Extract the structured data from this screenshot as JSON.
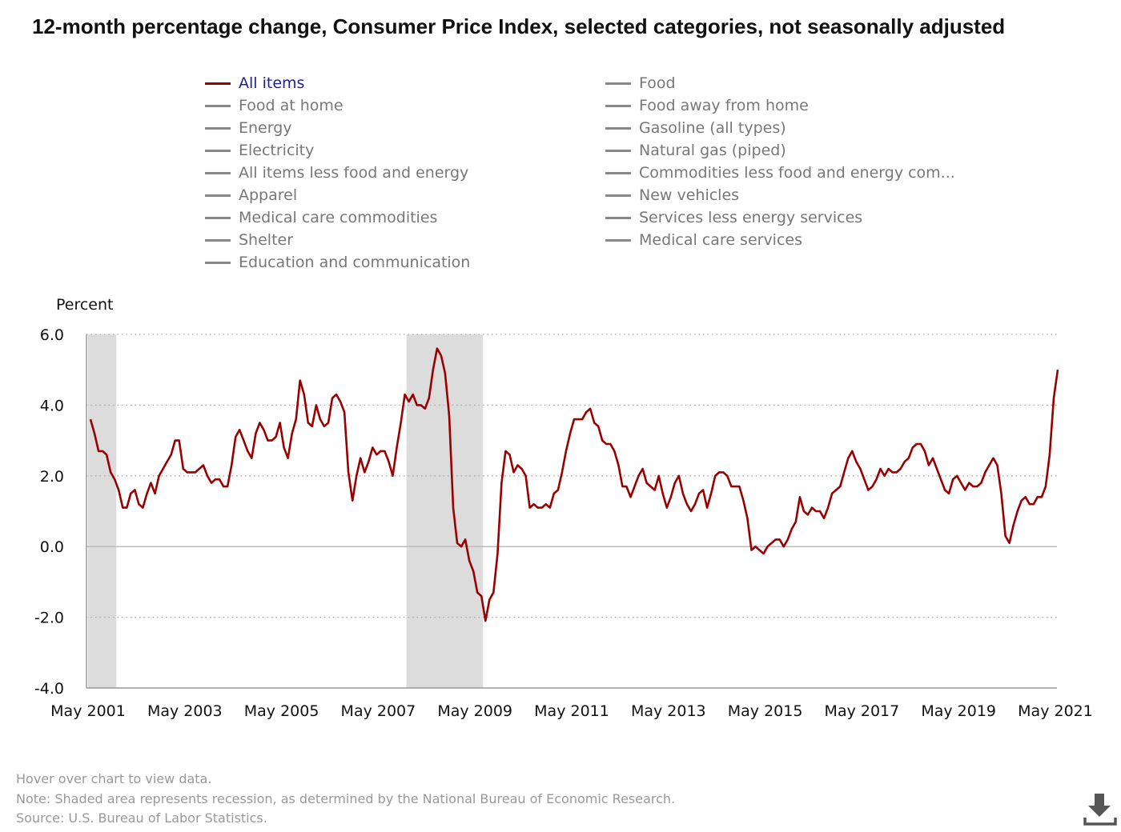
{
  "title": "12-month percentage change, Consumer Price Index, selected categories, not seasonally adjusted",
  "legend": {
    "col1": [
      "All items",
      "Food at home",
      "Energy",
      "Electricity",
      "All items less food and energy",
      "Apparel",
      "Medical care commodities",
      "Shelter",
      "Education and communication"
    ],
    "col2": [
      "Food",
      "Food away from home",
      "Gasoline (all types)",
      "Natural gas (piped)",
      "Commodities less food and energy com...",
      "New vehicles",
      "Services less energy services",
      "Medical care services"
    ],
    "active": "All items"
  },
  "colors": {
    "series": "#990000",
    "recession": "#dcdcdc",
    "active_legend_text": "#1f1f8f",
    "inactive_legend": "#888888"
  },
  "footer": {
    "hover": "Hover over chart to view data.",
    "note": "Note: Shaded area represents recession, as determined by the National Bureau of Economic Research.",
    "source": "Source: U.S. Bureau of Labor Statistics."
  },
  "download_icon": "download-icon",
  "chart_data": {
    "type": "line",
    "title": "12-month percentage change, Consumer Price Index, selected categories, not seasonally adjusted",
    "ylabel": "Percent",
    "ylim": [
      -4.0,
      6.0
    ],
    "yticks": [
      "6.0",
      "4.0",
      "2.0",
      "0.0",
      "-2.0",
      "-4.0"
    ],
    "ytick_values": [
      6,
      4,
      2,
      0,
      -2,
      -4
    ],
    "xlim": [
      "May 2001",
      "May 2021"
    ],
    "xticks": [
      "May 2001",
      "May 2003",
      "May 2005",
      "May 2007",
      "May 2009",
      "May 2011",
      "May 2013",
      "May 2015",
      "May 2017",
      "May 2019",
      "May 2021"
    ],
    "grid": "horizontal dotted",
    "start_month": "May 2001",
    "recessions": [
      [
        "May 2001",
        "Nov 2001"
      ],
      [
        "Dec 2007",
        "Jun 2009"
      ]
    ],
    "series": [
      {
        "name": "All items",
        "frequency": "monthly",
        "values": [
          3.6,
          3.2,
          2.7,
          2.7,
          2.6,
          2.1,
          1.9,
          1.6,
          1.1,
          1.1,
          1.5,
          1.6,
          1.2,
          1.1,
          1.5,
          1.8,
          1.5,
          2.0,
          2.2,
          2.4,
          2.6,
          3.0,
          3.0,
          2.2,
          2.1,
          2.1,
          2.1,
          2.2,
          2.3,
          2.0,
          1.8,
          1.9,
          1.9,
          1.7,
          1.7,
          2.3,
          3.1,
          3.3,
          3.0,
          2.7,
          2.5,
          3.2,
          3.5,
          3.3,
          3.0,
          3.0,
          3.1,
          3.5,
          2.8,
          2.5,
          3.2,
          3.6,
          4.7,
          4.3,
          3.5,
          3.4,
          4.0,
          3.6,
          3.4,
          3.5,
          4.2,
          4.3,
          4.1,
          3.8,
          2.1,
          1.3,
          2.0,
          2.5,
          2.1,
          2.4,
          2.8,
          2.6,
          2.7,
          2.7,
          2.4,
          2.0,
          2.8,
          3.5,
          4.3,
          4.1,
          4.3,
          4.0,
          4.0,
          3.9,
          4.2,
          5.0,
          5.6,
          5.4,
          4.9,
          3.7,
          1.1,
          0.1,
          0.0,
          0.2,
          -0.4,
          -0.7,
          -1.3,
          -1.4,
          -2.1,
          -1.5,
          -1.3,
          -0.2,
          1.8,
          2.7,
          2.6,
          2.1,
          2.3,
          2.2,
          2.0,
          1.1,
          1.2,
          1.1,
          1.1,
          1.2,
          1.1,
          1.5,
          1.6,
          2.1,
          2.7,
          3.2,
          3.6,
          3.6,
          3.6,
          3.8,
          3.9,
          3.5,
          3.4,
          3.0,
          2.9,
          2.9,
          2.7,
          2.3,
          1.7,
          1.7,
          1.4,
          1.7,
          2.0,
          2.2,
          1.8,
          1.7,
          1.6,
          2.0,
          1.5,
          1.1,
          1.4,
          1.8,
          2.0,
          1.5,
          1.2,
          1.0,
          1.2,
          1.5,
          1.6,
          1.1,
          1.5,
          2.0,
          2.1,
          2.1,
          2.0,
          1.7,
          1.7,
          1.7,
          1.3,
          0.8,
          -0.1,
          0.0,
          -0.1,
          -0.2,
          0.0,
          0.1,
          0.2,
          0.2,
          0.0,
          0.2,
          0.5,
          0.7,
          1.4,
          1.0,
          0.9,
          1.1,
          1.0,
          1.0,
          0.8,
          1.1,
          1.5,
          1.6,
          1.7,
          2.1,
          2.5,
          2.7,
          2.4,
          2.2,
          1.9,
          1.6,
          1.7,
          1.9,
          2.2,
          2.0,
          2.2,
          2.1,
          2.1,
          2.2,
          2.4,
          2.5,
          2.8,
          2.9,
          2.9,
          2.7,
          2.3,
          2.5,
          2.2,
          1.9,
          1.6,
          1.5,
          1.9,
          2.0,
          1.8,
          1.6,
          1.8,
          1.7,
          1.7,
          1.8,
          2.1,
          2.3,
          2.5,
          2.3,
          1.5,
          0.3,
          0.1,
          0.6,
          1.0,
          1.3,
          1.4,
          1.2,
          1.2,
          1.4,
          1.4,
          1.7,
          2.6,
          4.2,
          5.0
        ]
      }
    ]
  }
}
